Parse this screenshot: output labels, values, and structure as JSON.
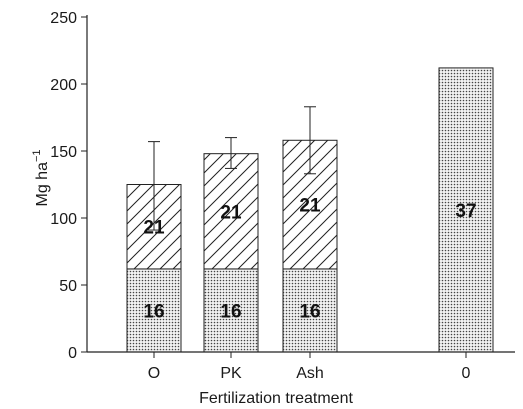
{
  "chart_data": {
    "type": "bar",
    "title": "",
    "xlabel": "Fertilization treatment",
    "ylabel_main": "Mg ha",
    "ylabel_sup": "−1",
    "ylim": [
      0,
      250
    ],
    "yticks": [
      "0",
      "50",
      "100",
      "150",
      "200",
      "250"
    ],
    "categories": [
      "O",
      "PK",
      "Ash",
      "0"
    ],
    "series": [
      {
        "pattern": "dots",
        "values": [
          62,
          62,
          62,
          212
        ],
        "labels": [
          "16",
          "16",
          "16",
          "37"
        ]
      },
      {
        "pattern": "hatch",
        "values": [
          63,
          86,
          96,
          null
        ],
        "labels": [
          "21",
          "21",
          "21",
          ""
        ]
      }
    ],
    "totals": [
      125,
      148,
      158,
      212
    ],
    "error_bars": [
      {
        "low": 91,
        "high": 157
      },
      {
        "low": 137,
        "high": 160
      },
      {
        "low": 133,
        "high": 183
      },
      null
    ]
  }
}
